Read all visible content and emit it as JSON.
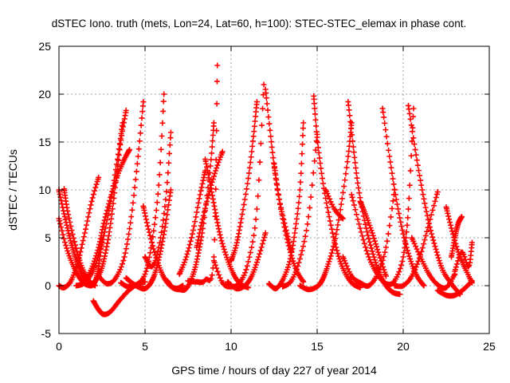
{
  "chart_data": {
    "type": "scatter",
    "title": "dSTEC Iono. truth (mets, Lon=24, Lat=60, h=100): STEC-STEC_elemax in phase cont.",
    "xlabel": "GPS time / hours of day 227 of year 2014",
    "ylabel": "dSTEC  / TECUs",
    "xlim": [
      0,
      25
    ],
    "ylim": [
      -5,
      25
    ],
    "xticks": [
      0,
      5,
      10,
      15,
      20,
      25
    ],
    "yticks": [
      -5,
      0,
      5,
      10,
      15,
      20,
      25
    ],
    "grid": true,
    "marker": "plus",
    "color": "#ff0000",
    "series": [
      {
        "x": [
          0.0,
          0.3,
          0.6,
          0.9,
          1.2,
          1.5,
          1.8,
          2.1,
          2.3,
          2.5
        ],
        "y": [
          10.0,
          7.5,
          5.2,
          3.3,
          1.8,
          0.6,
          0.0,
          0.4,
          2.0,
          4.8
        ]
      },
      {
        "x": [
          0.0,
          0.4,
          0.8,
          1.2,
          1.6,
          2.0,
          2.4,
          2.7,
          3.0,
          3.3,
          3.6,
          3.9
        ],
        "y": [
          7.0,
          4.2,
          2.2,
          0.8,
          0.1,
          0.3,
          1.4,
          3.4,
          6.5,
          10.8,
          15.2,
          18.3
        ]
      },
      {
        "x": [
          0.0,
          0.3,
          0.7,
          1.1,
          1.5,
          1.9,
          2.3
        ],
        "y": [
          0.0,
          -0.2,
          0.5,
          2.5,
          5.5,
          8.8,
          11.3
        ]
      },
      {
        "x": [
          0.3,
          0.5,
          0.9,
          1.3,
          1.7,
          2.1
        ],
        "y": [
          10.1,
          7.8,
          4.6,
          2.1,
          0.6,
          0.0
        ]
      },
      {
        "x": [
          1.0,
          1.4,
          1.8,
          2.2,
          2.6,
          3.0,
          3.4,
          3.7
        ],
        "y": [
          0.0,
          0.2,
          1.0,
          2.6,
          5.2,
          8.8,
          13.2,
          17.0
        ]
      },
      {
        "x": [
          1.5,
          1.9,
          2.3,
          2.6,
          3.0,
          3.4,
          3.8,
          4.1
        ],
        "y": [
          0.4,
          1.8,
          4.0,
          6.5,
          9.2,
          11.5,
          13.2,
          14.2
        ]
      },
      {
        "x": [
          2.0,
          2.3,
          2.6,
          3.0,
          3.5,
          4.0,
          4.5,
          5.0
        ],
        "y": [
          -1.6,
          -2.5,
          -3.0,
          -2.7,
          -1.6,
          -0.6,
          0.1,
          0.4
        ]
      },
      {
        "x": [
          2.3,
          2.8,
          3.3,
          3.8,
          4.2,
          4.6,
          4.9
        ],
        "y": [
          1.0,
          0.2,
          0.8,
          3.0,
          7.2,
          13.5,
          19.2
        ]
      },
      {
        "x": [
          3.6,
          4.0,
          4.5,
          5.0,
          5.4,
          5.8,
          6.1
        ],
        "y": [
          0.3,
          -0.1,
          0.1,
          1.2,
          4.5,
          10.5,
          20.0
        ]
      },
      {
        "x": [
          4.9,
          5.2,
          5.6,
          6.0,
          6.4,
          6.8,
          7.2
        ],
        "y": [
          8.3,
          5.9,
          3.2,
          1.2,
          0.1,
          -0.3,
          0.0
        ]
      },
      {
        "x": [
          5.0,
          5.4,
          5.8,
          6.2,
          6.5
        ],
        "y": [
          3.0,
          2.0,
          4.0,
          9.0,
          16.0
        ]
      },
      {
        "x": [
          6.5,
          6.2,
          5.9,
          5.6,
          5.3,
          5.0,
          4.7,
          4.3,
          3.9
        ],
        "y": [
          10.0,
          6.5,
          3.6,
          1.4,
          0.2,
          -0.3,
          -0.2,
          0.2,
          0.8
        ]
      },
      {
        "x": [
          6.3,
          6.6,
          7.0,
          7.4,
          7.8,
          8.1,
          8.4,
          8.8,
          9.0
        ],
        "y": [
          0.5,
          -0.2,
          -0.4,
          -0.3,
          1.2,
          3.4,
          6.5,
          12.5,
          17.0
        ]
      },
      {
        "x": [
          7.0,
          7.4,
          7.8,
          8.2,
          8.5
        ],
        "y": [
          1.2,
          3.0,
          5.8,
          9.5,
          12.0
        ]
      },
      {
        "x": [
          7.5,
          8.0,
          8.5,
          9.0,
          9.2
        ],
        "y": [
          0.5,
          0.4,
          0.6,
          3.0,
          23.0
        ]
      },
      {
        "x": [
          8.0,
          8.3,
          8.7,
          9.1,
          9.5
        ],
        "y": [
          4.0,
          6.6,
          9.5,
          12.0,
          14.0
        ]
      },
      {
        "x": [
          8.5,
          8.8,
          9.1,
          9.4,
          9.8,
          10.2,
          10.6,
          11.0
        ],
        "y": [
          13.2,
          10.5,
          7.6,
          5.0,
          2.7,
          1.0,
          0.1,
          -0.2
        ]
      },
      {
        "x": [
          9.0,
          9.5,
          10.0,
          10.5,
          11.0,
          11.5,
          11.9
        ],
        "y": [
          2.6,
          0.3,
          -0.1,
          0.3,
          2.5,
          8.0,
          21.0
        ]
      },
      {
        "x": [
          9.8,
          10.3,
          10.8,
          11.2,
          11.6,
          12.0
        ],
        "y": [
          0.4,
          -0.3,
          0.0,
          1.0,
          3.0,
          5.5
        ]
      },
      {
        "x": [
          10.0,
          10.3,
          10.6,
          11.0,
          11.3,
          11.5
        ],
        "y": [
          2.6,
          4.2,
          7.0,
          11.2,
          15.6,
          19.2
        ]
      },
      {
        "x": [
          12.0,
          12.3,
          12.6,
          13.0,
          13.4,
          13.8,
          14.2
        ],
        "y": [
          20.5,
          15.6,
          11.2,
          7.0,
          3.8,
          1.6,
          0.4
        ]
      },
      {
        "x": [
          12.2,
          12.6,
          13.0,
          13.4,
          13.7,
          14.0,
          14.2
        ],
        "y": [
          0.2,
          -0.3,
          0.6,
          2.5,
          5.5,
          10.0,
          17.0
        ]
      },
      {
        "x": [
          12.5,
          12.8,
          13.2,
          13.5
        ],
        "y": [
          12.7,
          9.0,
          5.8,
          3.6
        ]
      },
      {
        "x": [
          13.0,
          13.5,
          14.0,
          14.5,
          15.0
        ],
        "y": [
          -0.1,
          0.5,
          2.8,
          7.2,
          15.8
        ]
      },
      {
        "x": [
          14.0,
          14.5,
          15.0,
          15.3,
          15.6,
          16.0,
          16.4,
          16.8,
          17.0
        ],
        "y": [
          0.0,
          -0.4,
          -0.1,
          0.6,
          2.0,
          4.5,
          8.5,
          13.5,
          17.0
        ]
      },
      {
        "x": [
          14.8,
          15.0,
          15.3,
          15.7,
          16.1,
          16.5,
          17.0,
          17.5
        ],
        "y": [
          19.8,
          15.5,
          11.2,
          7.2,
          4.0,
          1.8,
          0.3,
          -0.2
        ]
      },
      {
        "x": [
          15.5,
          16.0,
          16.5
        ],
        "y": [
          10.0,
          8.0,
          7.0
        ]
      },
      {
        "x": [
          16.5,
          17.0,
          17.5,
          18.0,
          18.5,
          19.0,
          19.5
        ],
        "y": [
          3.0,
          1.0,
          0.3,
          0.0,
          1.2,
          4.0,
          10.0
        ]
      },
      {
        "x": [
          16.8,
          17.1,
          17.4,
          17.8,
          18.2,
          18.6,
          19.0,
          19.4,
          19.8
        ],
        "y": [
          19.2,
          14.5,
          10.2,
          6.4,
          3.6,
          1.4,
          0.0,
          -0.7,
          -0.9
        ]
      },
      {
        "x": [
          17.5,
          17.8,
          18.2,
          18.6,
          19.0
        ],
        "y": [
          8.8,
          7.5,
          5.5,
          3.2,
          1.0
        ]
      },
      {
        "x": [
          17.0,
          17.5,
          18.0,
          18.5,
          19.0,
          19.5,
          20.0,
          20.3,
          20.6
        ],
        "y": [
          9.5,
          6.0,
          3.0,
          1.2,
          0.2,
          0.5,
          3.0,
          8.0,
          18.5
        ]
      },
      {
        "x": [
          18.8,
          19.2,
          19.6,
          20.0,
          20.4,
          20.8,
          21.2
        ],
        "y": [
          18.5,
          13.5,
          9.0,
          5.4,
          2.8,
          1.0,
          0.0
        ]
      },
      {
        "x": [
          19.5,
          20.0,
          20.5,
          21.0,
          21.5,
          22.0
        ],
        "y": [
          0.0,
          0.0,
          1.0,
          3.2,
          6.5,
          9.8
        ]
      },
      {
        "x": [
          20.3,
          20.7,
          21.1,
          21.5,
          21.9,
          22.3,
          22.8,
          23.3
        ],
        "y": [
          18.8,
          14.2,
          10.0,
          6.5,
          3.8,
          1.6,
          0.2,
          -0.9
        ]
      },
      {
        "x": [
          20.5,
          21.0,
          21.5,
          22.0,
          22.5,
          23.0
        ],
        "y": [
          5.0,
          3.0,
          1.2,
          0.1,
          -0.2,
          1.2
        ]
      },
      {
        "x": [
          22.0,
          22.5,
          23.0,
          23.5,
          24.0
        ],
        "y": [
          -0.5,
          -1.0,
          -1.0,
          -0.4,
          0.5
        ]
      },
      {
        "x": [
          22.5,
          22.8,
          23.2,
          23.6,
          24.0
        ],
        "y": [
          8.2,
          6.0,
          3.5,
          1.8,
          0.3
        ]
      },
      {
        "x": [
          23.0,
          23.4,
          23.8,
          24.0
        ],
        "y": [
          1.5,
          3.5,
          2.0,
          4.5
        ]
      },
      {
        "x": [
          22.8,
          23.0,
          23.2,
          23.4
        ],
        "y": [
          3.0,
          5.0,
          6.5,
          7.2
        ]
      }
    ]
  }
}
